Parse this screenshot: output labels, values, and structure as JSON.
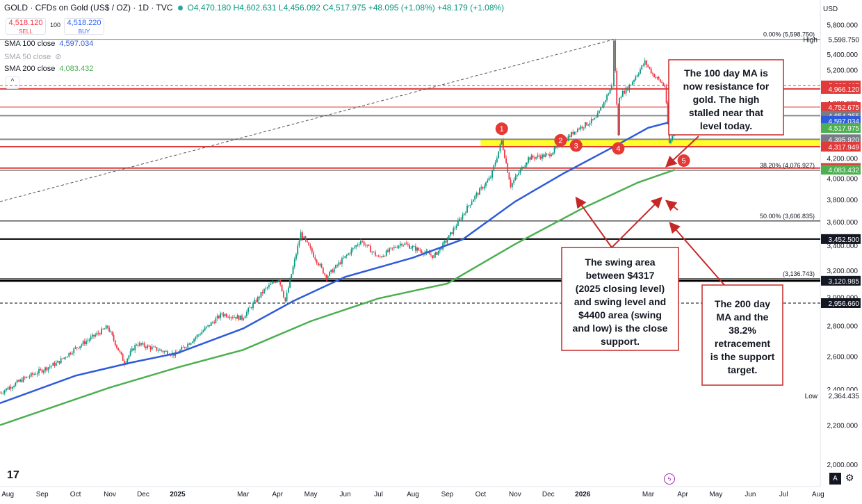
{
  "header": {
    "symbol": "GOLD · CFDs on Gold (US$ / OZ) · 1D · TVC",
    "ohlc": "O4,470.180  H4,602.631  L4,456.092  C4,517.975  +48.095 (+1.08%)  +48.179 (+1.08%)"
  },
  "trade": {
    "sell_price": "4,518.120",
    "sell_label": "SELL",
    "lot": "100",
    "buy_price": "4,518.220",
    "buy_label": "BUY"
  },
  "legend": {
    "sma100_label": "SMA 100 close",
    "sma100_value": "4,597.034",
    "sma50_label": "SMA 50 close",
    "sma200_label": "SMA 200 close",
    "sma200_value": "4,083.432"
  },
  "currency": "USD",
  "colors": {
    "up": "#089981",
    "down": "#f23645",
    "sma100": "#2e5bdb",
    "sma200": "#4caf50",
    "zone": "#ffff00",
    "resistance": "#e03a3a"
  },
  "chart_data": {
    "type": "candlestick",
    "title": "GOLD · CFDs on Gold (US$ / OZ) · 1D · TVC",
    "y_axis": {
      "scale": "log",
      "ticks": [
        "5,800.000",
        "5,600.000",
        "5,400.000",
        "5,200.000",
        "5,000.000",
        "4,800.000",
        "4,600.000",
        "4,400.000",
        "4,200.000",
        "4,000.000",
        "3,800.000",
        "3,600.000",
        "3,400.000",
        "3,200.000",
        "3,000.000",
        "2,800.000",
        "2,600.000",
        "2,400.000",
        "2,200.000",
        "2,000.000"
      ],
      "tick_values": [
        5800,
        5600,
        5400,
        5200,
        5000,
        4800,
        4600,
        4400,
        4200,
        4000,
        3800,
        3600,
        3400,
        3200,
        3000,
        2800,
        2600,
        2400,
        2200,
        2000
      ]
    },
    "x_axis": {
      "ticks": [
        "Aug",
        "Sep",
        "Oct",
        "Nov",
        "Dec",
        "2025",
        "Mar",
        "Apr",
        "May",
        "Jun",
        "Jul",
        "Aug",
        "Sep",
        "Oct",
        "Nov",
        "Dec",
        "2026",
        "Mar",
        "Apr",
        "May",
        "Jun",
        "Jul",
        "Aug"
      ],
      "tick_dates": [
        "2024-08-01",
        "2024-09-01",
        "2024-10-01",
        "2024-11-01",
        "2024-12-01",
        "2025-01-01",
        "2025-03-01",
        "2025-04-01",
        "2025-05-01",
        "2025-06-01",
        "2025-07-01",
        "2025-08-01",
        "2025-09-01",
        "2025-10-01",
        "2025-11-01",
        "2025-12-01",
        "2026-01-01",
        "2026-03-01",
        "2026-04-01",
        "2026-05-01",
        "2026-06-01",
        "2026-07-01",
        "2026-08-01"
      ]
    },
    "price_path": [
      [
        "2024-07-25",
        2380
      ],
      [
        "2024-08-15",
        2460
      ],
      [
        "2024-09-15",
        2560
      ],
      [
        "2024-10-01",
        2650
      ],
      [
        "2024-10-30",
        2790
      ],
      [
        "2024-11-14",
        2560
      ],
      [
        "2024-11-25",
        2680
      ],
      [
        "2024-12-30",
        2610
      ],
      [
        "2025-01-20",
        2740
      ],
      [
        "2025-02-10",
        2880
      ],
      [
        "2025-02-28",
        2850
      ],
      [
        "2025-03-20",
        3050
      ],
      [
        "2025-04-02",
        3140
      ],
      [
        "2025-04-08",
        2970
      ],
      [
        "2025-04-22",
        3500
      ],
      [
        "2025-05-15",
        3150
      ],
      [
        "2025-06-15",
        3440
      ],
      [
        "2025-07-01",
        3300
      ],
      [
        "2025-07-22",
        3420
      ],
      [
        "2025-08-20",
        3310
      ],
      [
        "2025-09-01",
        3450
      ],
      [
        "2025-09-23",
        3790
      ],
      [
        "2025-10-10",
        4010
      ],
      [
        "2025-10-20",
        4380
      ],
      [
        "2025-10-28",
        3930
      ],
      [
        "2025-11-13",
        4200
      ],
      [
        "2025-12-01",
        4230
      ],
      [
        "2025-12-12",
        4340
      ],
      [
        "2025-12-26",
        4500
      ],
      [
        "2026-01-13",
        4620
      ],
      [
        "2026-01-27",
        5000
      ],
      [
        "2026-01-29",
        5598.75
      ],
      [
        "2026-02-02",
        4430
      ],
      [
        "2026-02-03",
        4880
      ],
      [
        "2026-02-12",
        5000
      ],
      [
        "2026-02-26",
        5300
      ],
      [
        "2026-03-05",
        5150
      ],
      [
        "2026-03-16",
        5000
      ],
      [
        "2026-03-20",
        4350
      ],
      [
        "2026-03-24",
        4470
      ],
      [
        "2026-03-25",
        4517.975
      ]
    ],
    "sma100": [
      [
        "2024-07-25",
        2320
      ],
      [
        "2024-10-01",
        2480
      ],
      [
        "2024-11-20",
        2560
      ],
      [
        "2025-01-01",
        2620
      ],
      [
        "2025-03-01",
        2780
      ],
      [
        "2025-04-15",
        2970
      ],
      [
        "2025-06-01",
        3150
      ],
      [
        "2025-08-01",
        3300
      ],
      [
        "2025-09-15",
        3450
      ],
      [
        "2025-11-01",
        3780
      ],
      [
        "2025-12-15",
        4050
      ],
      [
        "2026-01-31",
        4330
      ],
      [
        "2026-03-01",
        4520
      ],
      [
        "2026-03-25",
        4597.034
      ]
    ],
    "sma200": [
      [
        "2024-07-25",
        2200
      ],
      [
        "2024-11-01",
        2410
      ],
      [
        "2025-01-01",
        2530
      ],
      [
        "2025-03-01",
        2640
      ],
      [
        "2025-05-01",
        2830
      ],
      [
        "2025-07-01",
        2990
      ],
      [
        "2025-09-01",
        3100
      ],
      [
        "2025-11-01",
        3410
      ],
      [
        "2026-01-01",
        3720
      ],
      [
        "2026-02-20",
        3960
      ],
      [
        "2026-03-25",
        4083.432
      ]
    ],
    "horizontal_lines": [
      {
        "value": 5598.75,
        "color": "#888888",
        "width": 1
      },
      {
        "value": 5008.117,
        "color": "#e03a3a",
        "width": 1,
        "dash": true
      },
      {
        "value": 4966.12,
        "color": "#e03a3a",
        "width": 2
      },
      {
        "value": 4752.675,
        "color": "#e03a3a",
        "width": 1
      },
      {
        "value": 4654.355,
        "color": "#888888",
        "width": 2
      },
      {
        "value": 4395.92,
        "color": "#888888",
        "width": 2
      },
      {
        "value": 4317.949,
        "color": "#e03a3a",
        "width": 2
      },
      {
        "value": 4100.417,
        "color": "#e03a3a",
        "width": 2
      },
      {
        "value": 4076.927,
        "color": "#555555",
        "width": 1
      },
      {
        "value": 3606.835,
        "color": "#000000",
        "width": 1
      },
      {
        "value": 3452.5,
        "color": "#000000",
        "width": 2
      },
      {
        "value": 3136.743,
        "color": "#000000",
        "width": 1
      },
      {
        "value": 3120.985,
        "color": "#000000",
        "width": 3
      },
      {
        "value": 2956.66,
        "color": "#000000",
        "width": 1,
        "dash": true
      }
    ],
    "support_zone": {
      "from": 4317.949,
      "to": 4395.92,
      "start": "2025-10-01"
    },
    "price_labels": [
      {
        "text": "5,598.750",
        "value": 5598.75,
        "bg": "#ffffff",
        "fg": "#131722",
        "tag": "High"
      },
      {
        "text": "5,008.117",
        "value": 5008.117,
        "bg": "#e03a3a",
        "fg": "#ffffff"
      },
      {
        "text": "4,966.120",
        "value": 4966.12,
        "bg": "#e03a3a",
        "fg": "#ffffff"
      },
      {
        "text": "4,752.675",
        "value": 4752.675,
        "bg": "#e03a3a",
        "fg": "#ffffff"
      },
      {
        "text": "4,654.355",
        "value": 4654.355,
        "bg": "#787b86",
        "fg": "#ffffff"
      },
      {
        "text": "4,597.034",
        "value": 4597.034,
        "bg": "#2e5bdb",
        "fg": "#ffffff"
      },
      {
        "text": "4,517.975",
        "value": 4517.975,
        "bg": "#4caf50",
        "fg": "#ffffff"
      },
      {
        "text": "4,395.920",
        "value": 4395.92,
        "bg": "#787b86",
        "fg": "#ffffff"
      },
      {
        "text": "4,317.949",
        "value": 4317.949,
        "bg": "#e03a3a",
        "fg": "#ffffff"
      },
      {
        "text": "4,100.417",
        "value": 4100.417,
        "bg": "#e03a3a",
        "fg": "#ffffff"
      },
      {
        "text": "4,083.432",
        "value": 4083.432,
        "bg": "#4caf50",
        "fg": "#ffffff"
      },
      {
        "text": "3,452.500",
        "value": 3452.5,
        "bg": "#131722",
        "fg": "#ffffff"
      },
      {
        "text": "3,120.985",
        "value": 3120.985,
        "bg": "#131722",
        "fg": "#ffffff"
      },
      {
        "text": "2,956.660",
        "value": 2956.66,
        "bg": "#131722",
        "fg": "#ffffff"
      },
      {
        "text": "2,364.435",
        "value": 2364.435,
        "bg": "#ffffff",
        "fg": "#131722",
        "tag": "Low"
      }
    ],
    "fib_labels": [
      {
        "text": "0.00% (5,598.750)",
        "value": 5598.75
      },
      {
        "text": "38.20% (4,076.927)",
        "value": 4076.927
      },
      {
        "text": "50.00% (3,606.835)",
        "value": 3606.835
      },
      {
        "text": "(3,136.743)",
        "value": 3136.743
      }
    ],
    "trendline": {
      "from": [
        "2024-07-25",
        3780
      ],
      "to": [
        "2026-01-29",
        5598.75
      ]
    },
    "markers": [
      {
        "n": "1",
        "date": "2025-10-20",
        "value": 4510
      },
      {
        "n": "2",
        "date": "2025-12-12",
        "value": 4385
      },
      {
        "n": "3",
        "date": "2025-12-26",
        "value": 4330
      },
      {
        "n": "4",
        "date": "2026-02-02",
        "value": 4300
      },
      {
        "n": "5",
        "date": "2026-04-02",
        "value": 4175
      }
    ],
    "annotations": [
      {
        "text": "The 100 day MA is now resistance for gold. The high stalled near that level today."
      },
      {
        "text": "The swing area between $4317 (2025 closing level) and swing level and $4400 area (swing and low) is the close support."
      },
      {
        "text": "The 200 day MA and the 38.2% retracement is the support target."
      }
    ]
  }
}
